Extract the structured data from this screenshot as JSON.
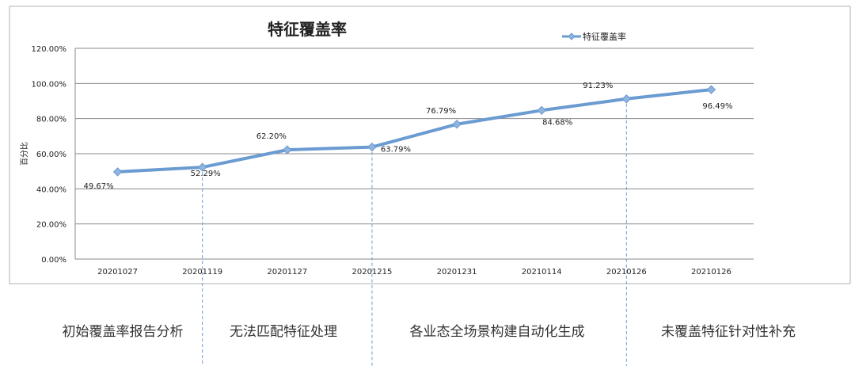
{
  "chart_data": {
    "type": "line",
    "title": "特征覆盖率",
    "ylabel": "百分比",
    "xlabel": "",
    "ylim": [
      0,
      120
    ],
    "y_tick_step": 20,
    "y_tick_format": "percent_2dp",
    "grid": true,
    "legend_position": "top-right",
    "categories": [
      "20201027",
      "20201119",
      "20201127",
      "20201215",
      "20201231",
      "20210114",
      "20210126",
      "20210126"
    ],
    "series": [
      {
        "name": "特征覆盖率",
        "values": [
          49.67,
          52.29,
          62.2,
          63.79,
          76.79,
          84.68,
          91.23,
          96.49
        ],
        "value_labels": [
          "49.67%",
          "52.29%",
          "62.20%",
          "63.79%",
          "76.79%",
          "84.68%",
          "91.23%",
          "96.49%"
        ],
        "color": "#6a9bd1"
      }
    ],
    "y_ticks": [
      "0.00%",
      "20.00%",
      "40.00%",
      "60.00%",
      "80.00%",
      "100.00%",
      "120.00%"
    ]
  },
  "phases": [
    {
      "label": "初始覆盖率报告分析"
    },
    {
      "label": "无法匹配特征处理"
    },
    {
      "label": "各业态全场景构建自动化生成"
    },
    {
      "label": "未覆盖特征针对性补充"
    }
  ],
  "colors": {
    "line": "#6a9bd1",
    "marker": "#8fb4de",
    "grid": "#888888",
    "frame": "#b0b0b0",
    "divider": "#6a9bd1",
    "text": "#222222"
  }
}
